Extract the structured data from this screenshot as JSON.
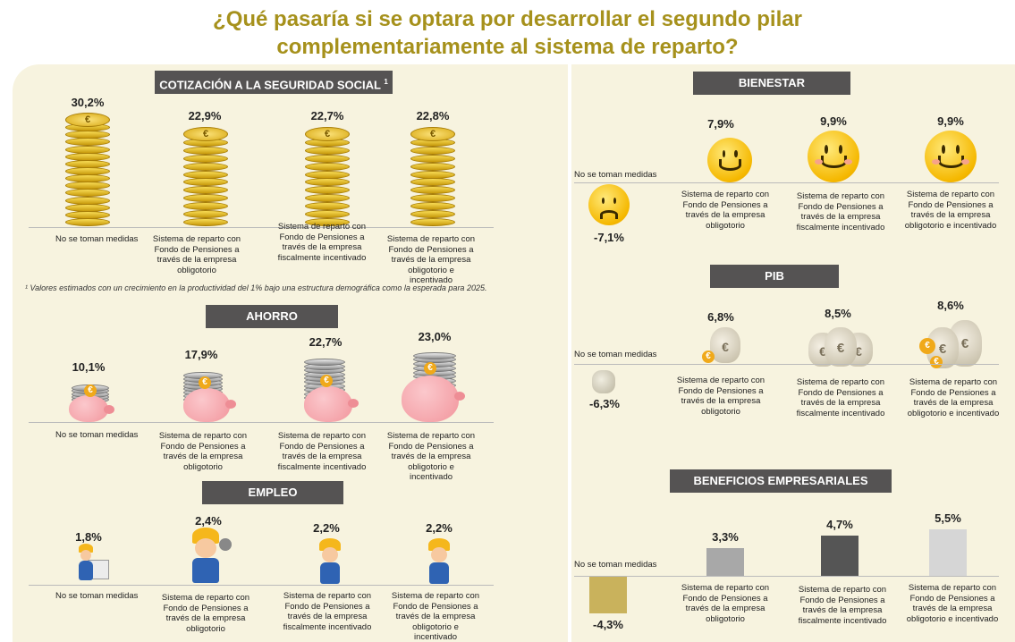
{
  "title": {
    "line1": "¿Qué pasaría si se optara por  desarrollar el segundo pilar",
    "line2": "complementariamente  al sistema de reparto?"
  },
  "labels": {
    "none": "No se toman medidas",
    "obligatorio": "Sistema de reparto con Fondo de Pensiones a través de la empresa obligotorio",
    "fiscal": "Sistema de reparto con Fondo de Pensiones a través de la empresa fiscalmente incentivado",
    "ambos": "Sistema de reparto con Fondo de Pensiones a través de la empresa obligotorio e incentivado"
  },
  "cotizacion": {
    "header": "COTIZACIÓN A LA SEGURIDAD SOCIAL",
    "header_sup": "1",
    "values": [
      "30,2%",
      "22,9%",
      "22,7%",
      "22,8%"
    ],
    "footnote": "¹ Valores estimados con un crecimiento en  la productividad del 1% bajo una estructura demográfica como la esperada para 2025."
  },
  "ahorro": {
    "header": "AHORRO",
    "values": [
      "10,1%",
      "17,9%",
      "22,7%",
      "23,0%"
    ]
  },
  "empleo": {
    "header": "EMPLEO",
    "values": [
      "1,8%",
      "2,4%",
      "2,2%",
      "2,2%"
    ]
  },
  "bienestar": {
    "header": "BIENESTAR",
    "values": [
      "-7,1%",
      "7,9%",
      "9,9%",
      "9,9%"
    ]
  },
  "pib": {
    "header": "PIB",
    "values": [
      "-6,3%",
      "6,8%",
      "8,5%",
      "8,6%"
    ]
  },
  "beneficios": {
    "header": "BENEFICIOS EMPRESARIALES",
    "values": [
      "-4,3%",
      "3,3%",
      "4,7%",
      "5,5%"
    ]
  },
  "chart_data": {
    "type": "bar",
    "title": "BENEFICIOS EMPRESARIALES",
    "categories": [
      "No se toman medidas",
      "Sistema de reparto con Fondo de Pensiones a través de la empresa obligotorio",
      "Sistema de reparto con Fondo de Pensiones a través de la empresa fiscalmente incentivado",
      "Sistema de reparto con Fondo de Pensiones a través de la empresa obligotorio e incentivado"
    ],
    "values": [
      -4.3,
      3.3,
      4.7,
      5.5
    ],
    "colors": [
      "#c9b25c",
      "#a8a8a8",
      "#555555",
      "#d6d6d6"
    ]
  },
  "colors": {
    "title": "#a6911c",
    "header_bg": "#555353",
    "panel_bg": "#f7f3df"
  }
}
